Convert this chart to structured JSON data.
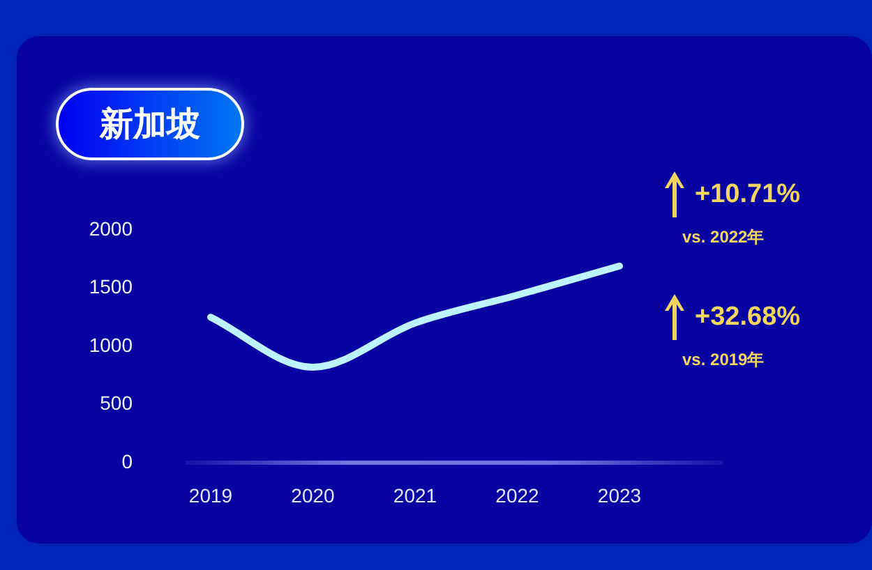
{
  "chart_data": {
    "type": "line",
    "title": "新加坡",
    "categories": [
      "2019",
      "2020",
      "2021",
      "2022",
      "2023"
    ],
    "values": [
      1250,
      820,
      1200,
      1440,
      1690
    ],
    "color": "#bdf2ff",
    "ylim": [
      0,
      2000
    ],
    "yticks": [
      0,
      500,
      1000,
      1500,
      2000
    ],
    "marker": "none",
    "annotations": [
      "+10.71%",
      "vs. 2022年",
      "+32.68%",
      "vs. 2019年"
    ]
  }
}
